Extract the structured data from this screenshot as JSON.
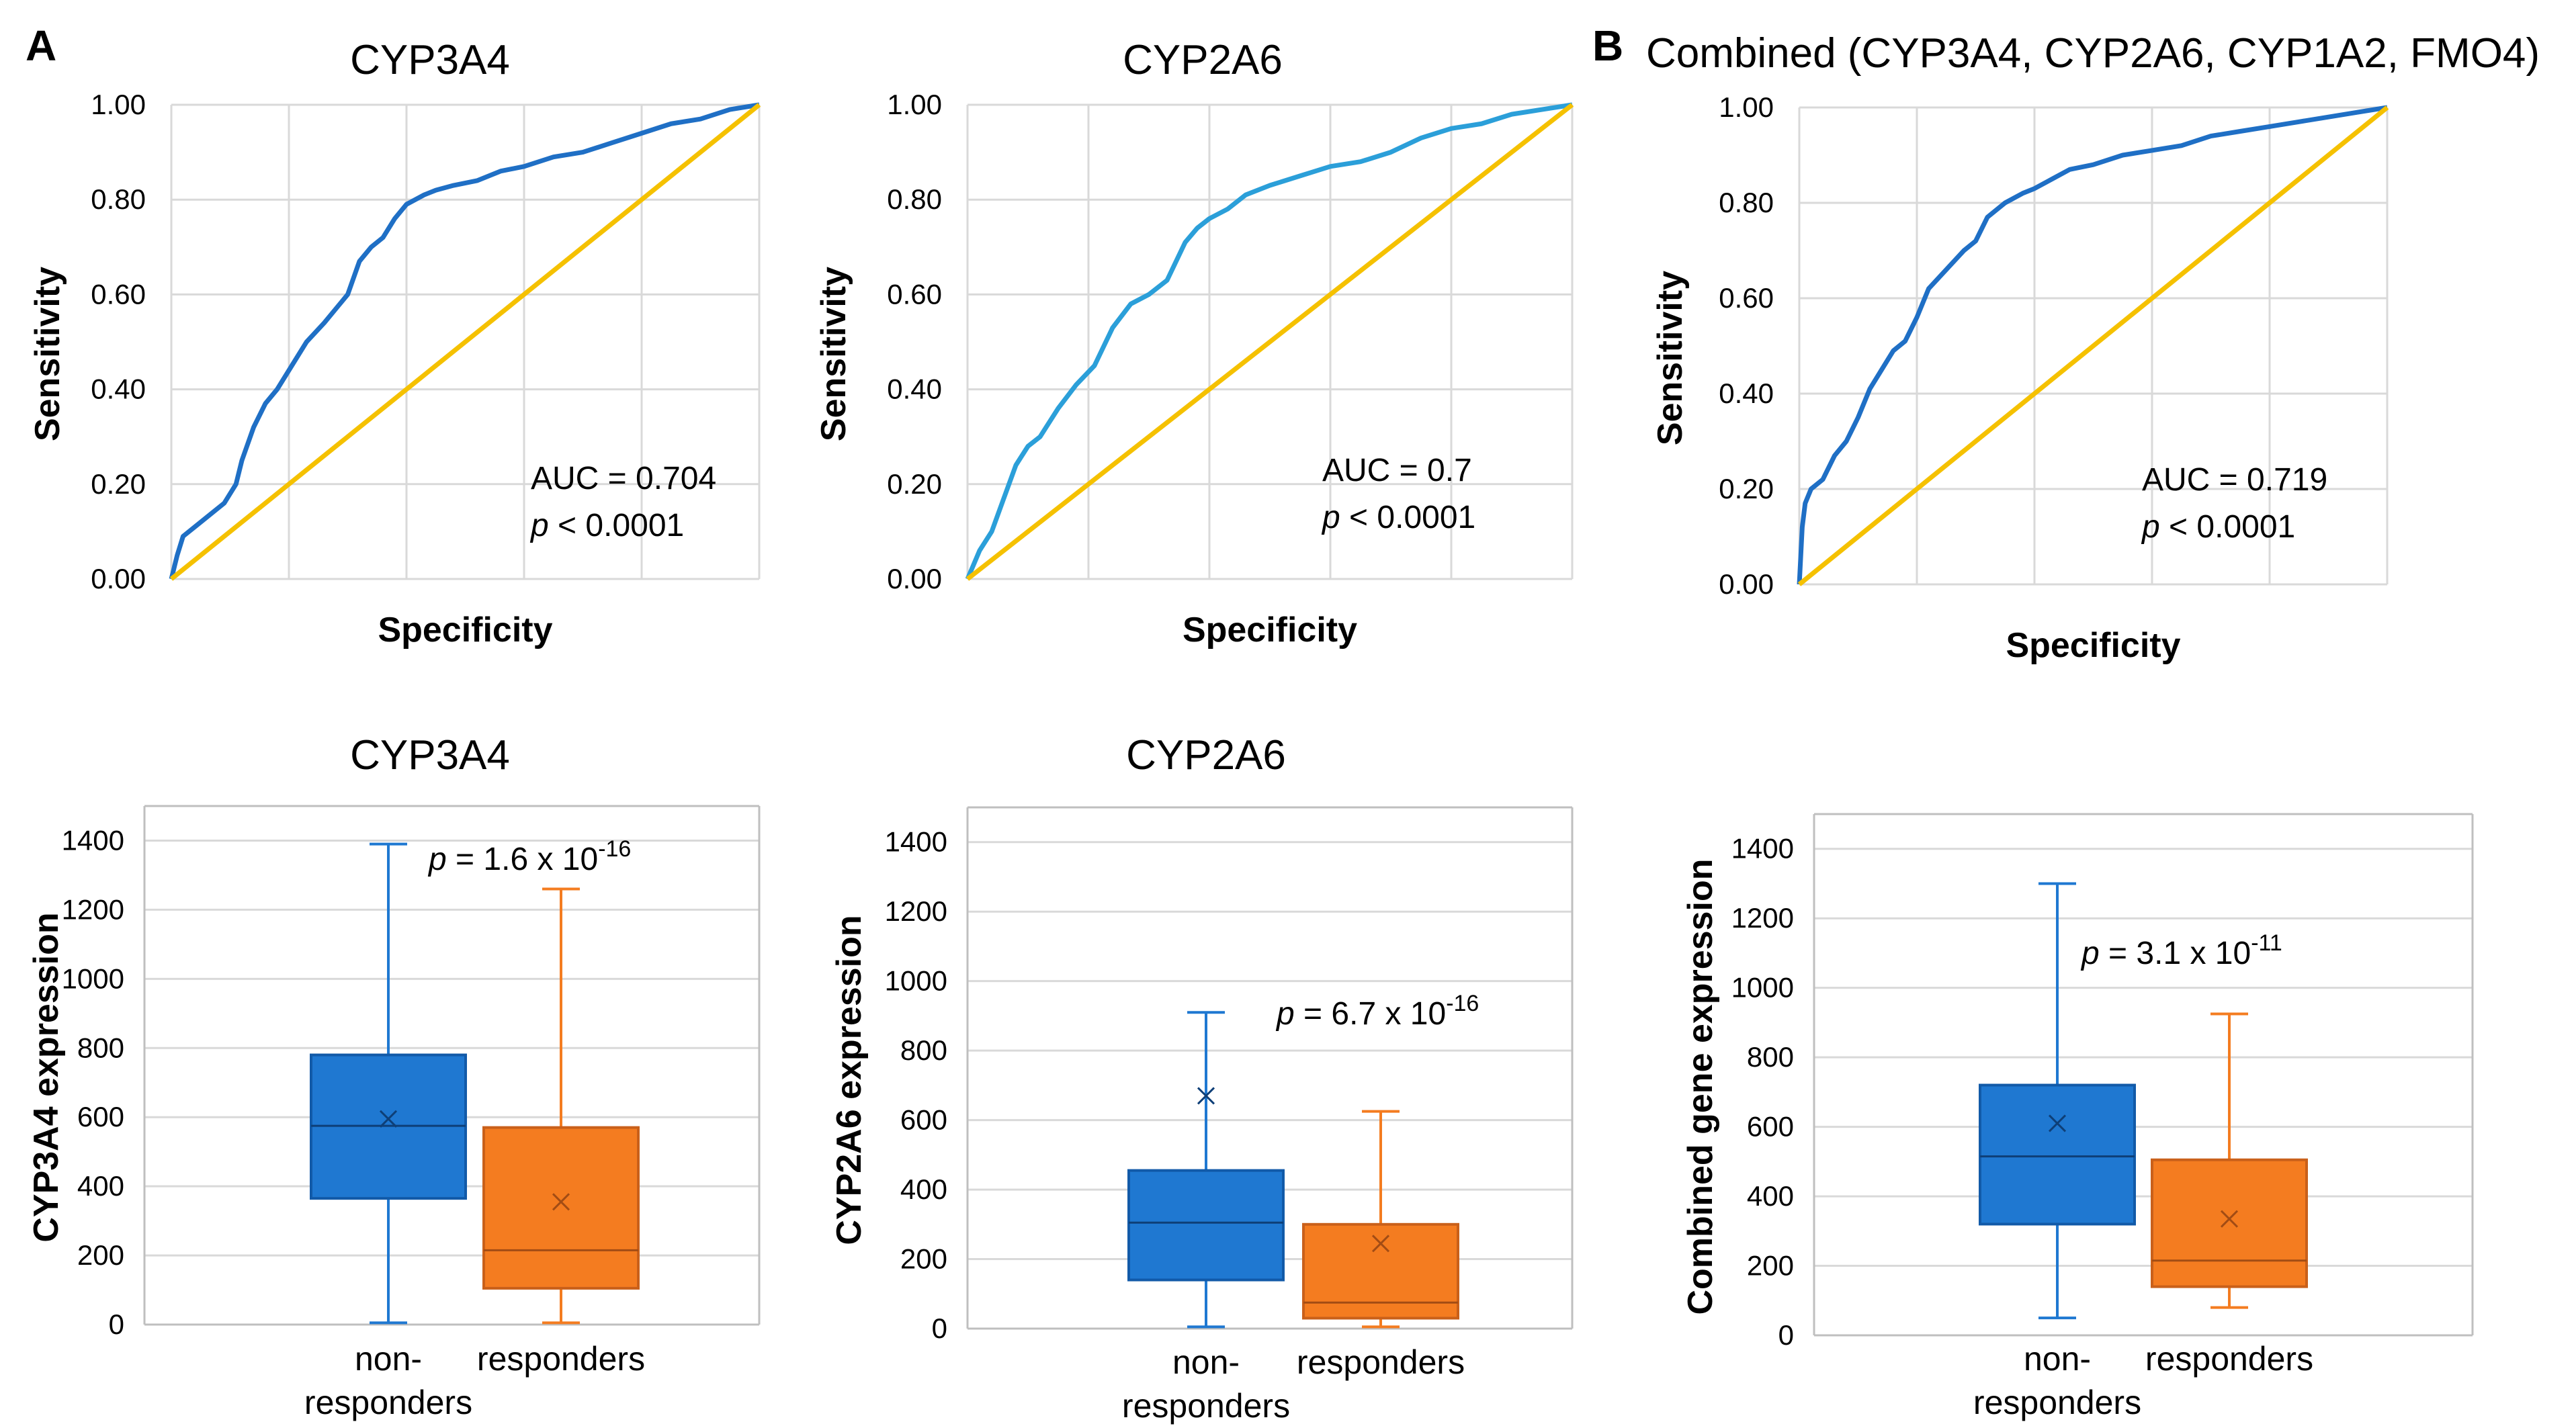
{
  "panel_labels": {
    "a": "A",
    "b": "B"
  },
  "colors": {
    "roc_blue": "#1f6fc5",
    "roc_light": "#2b9fd9",
    "ref_line": "#f5c100",
    "box_blue": "#1f78d1",
    "box_orange": "#f47c20",
    "grid": "#d9d9d9",
    "axis": "#bfbfbf"
  },
  "chart_data": [
    {
      "type": "line",
      "id": "roc_cyp3a4",
      "title": "CYP3A4",
      "xlabel": "Specificity",
      "ylabel": "Sensitivity",
      "ylim": [
        0,
        1
      ],
      "yticks": [
        "0.00",
        "0.20",
        "0.40",
        "0.60",
        "0.80",
        "1.00"
      ],
      "annotation": {
        "auc": "AUC = 0.704",
        "p_italic": "p",
        "p_rest": " < 0.0001"
      },
      "series": [
        {
          "name": "ROC",
          "color": "#1f6fc5",
          "x": [
            0,
            0.01,
            0.02,
            0.04,
            0.06,
            0.09,
            0.11,
            0.12,
            0.14,
            0.16,
            0.18,
            0.2,
            0.23,
            0.26,
            0.28,
            0.3,
            0.32,
            0.34,
            0.36,
            0.37,
            0.38,
            0.4,
            0.43,
            0.45,
            0.48,
            0.52,
            0.56,
            0.6,
            0.65,
            0.7,
            0.75,
            0.8,
            0.85,
            0.9,
            0.95,
            1
          ],
          "y": [
            0,
            0.05,
            0.09,
            0.11,
            0.13,
            0.16,
            0.2,
            0.25,
            0.32,
            0.37,
            0.4,
            0.44,
            0.5,
            0.54,
            0.57,
            0.6,
            0.67,
            0.7,
            0.72,
            0.74,
            0.76,
            0.79,
            0.81,
            0.82,
            0.83,
            0.84,
            0.86,
            0.87,
            0.89,
            0.9,
            0.92,
            0.94,
            0.96,
            0.97,
            0.99,
            1
          ]
        },
        {
          "name": "Reference",
          "color": "#f5c100",
          "x": [
            0,
            1
          ],
          "y": [
            0,
            1
          ]
        }
      ]
    },
    {
      "type": "line",
      "id": "roc_cyp2a6",
      "title": "CYP2A6",
      "xlabel": "Specificity",
      "ylabel": "Sensitivity",
      "ylim": [
        0,
        1
      ],
      "yticks": [
        "0.00",
        "0.20",
        "0.40",
        "0.60",
        "0.80",
        "1.00"
      ],
      "annotation": {
        "auc": "AUC = 0.7",
        "p_italic": "p",
        "p_rest": " < 0.0001"
      },
      "series": [
        {
          "name": "ROC",
          "color": "#2b9fd9",
          "x": [
            0,
            0.01,
            0.02,
            0.04,
            0.06,
            0.08,
            0.1,
            0.12,
            0.15,
            0.18,
            0.21,
            0.24,
            0.27,
            0.3,
            0.33,
            0.36,
            0.38,
            0.4,
            0.43,
            0.46,
            0.5,
            0.55,
            0.6,
            0.65,
            0.7,
            0.75,
            0.8,
            0.85,
            0.9,
            0.95,
            1
          ],
          "y": [
            0,
            0.03,
            0.06,
            0.1,
            0.17,
            0.24,
            0.28,
            0.3,
            0.36,
            0.41,
            0.45,
            0.53,
            0.58,
            0.6,
            0.63,
            0.71,
            0.74,
            0.76,
            0.78,
            0.81,
            0.83,
            0.85,
            0.87,
            0.88,
            0.9,
            0.93,
            0.95,
            0.96,
            0.98,
            0.99,
            1
          ]
        },
        {
          "name": "Reference",
          "color": "#f5c100",
          "x": [
            0,
            1
          ],
          "y": [
            0,
            1
          ]
        }
      ]
    },
    {
      "type": "line",
      "id": "roc_combined",
      "title": "Combined (CYP3A4, CYP2A6, CYP1A2, FMO4)",
      "xlabel": "Specificity",
      "ylabel": "Sensitivity",
      "ylim": [
        0,
        1
      ],
      "yticks": [
        "0.00",
        "0.20",
        "0.40",
        "0.60",
        "0.80",
        "1.00"
      ],
      "annotation": {
        "auc": "AUC = 0.719",
        "p_italic": "p",
        "p_rest": " < 0.0001"
      },
      "series": [
        {
          "name": "ROC",
          "color": "#1f6fc5",
          "x": [
            0,
            0.005,
            0.01,
            0.02,
            0.04,
            0.06,
            0.08,
            0.1,
            0.12,
            0.14,
            0.16,
            0.18,
            0.2,
            0.22,
            0.25,
            0.28,
            0.3,
            0.32,
            0.35,
            0.38,
            0.4,
            0.43,
            0.46,
            0.5,
            0.55,
            0.6,
            0.65,
            0.7,
            0.75,
            0.8,
            0.85,
            0.9,
            0.95,
            1
          ],
          "y": [
            0,
            0.12,
            0.17,
            0.2,
            0.22,
            0.27,
            0.3,
            0.35,
            0.41,
            0.45,
            0.49,
            0.51,
            0.56,
            0.62,
            0.66,
            0.7,
            0.72,
            0.77,
            0.8,
            0.82,
            0.83,
            0.85,
            0.87,
            0.88,
            0.9,
            0.91,
            0.92,
            0.94,
            0.95,
            0.96,
            0.97,
            0.98,
            0.99,
            1
          ]
        },
        {
          "name": "Reference",
          "color": "#f5c100",
          "x": [
            0,
            1
          ],
          "y": [
            0,
            1
          ]
        }
      ]
    },
    {
      "type": "box",
      "id": "box_cyp3a4",
      "title": "CYP3A4",
      "ylabel": "CYP3A4 expression",
      "ylim": [
        0,
        1500
      ],
      "yticks": [
        "0",
        "200",
        "400",
        "600",
        "800",
        "1000",
        "1200",
        "1400"
      ],
      "categories": [
        "non-\nresponders",
        "responders"
      ],
      "annotation": {
        "p_italic": "p",
        "p_rest": " = 1.6 x 10",
        "exp": "-16"
      },
      "series": [
        {
          "name": "non-responders",
          "color": "#1f78d1",
          "min": 5,
          "q1": 365,
          "median": 575,
          "q3": 780,
          "max": 1390,
          "mean": 595
        },
        {
          "name": "responders",
          "color": "#f47c20",
          "min": 5,
          "q1": 105,
          "median": 215,
          "q3": 570,
          "max": 1260,
          "mean": 355
        }
      ]
    },
    {
      "type": "box",
      "id": "box_cyp2a6",
      "title": "CYP2A6",
      "ylabel": "CYP2A6 expression",
      "ylim": [
        0,
        1500
      ],
      "yticks": [
        "0",
        "200",
        "400",
        "600",
        "800",
        "1000",
        "1200",
        "1400"
      ],
      "categories": [
        "non-\nresponders",
        "responders"
      ],
      "annotation": {
        "p_italic": "p",
        "p_rest": " = 6.7 x 10",
        "exp": "-16"
      },
      "series": [
        {
          "name": "non-responders",
          "color": "#1f78d1",
          "min": 5,
          "q1": 140,
          "median": 305,
          "q3": 455,
          "max": 910,
          "mean": 670
        },
        {
          "name": "responders",
          "color": "#f47c20",
          "min": 5,
          "q1": 30,
          "median": 75,
          "q3": 300,
          "max": 625,
          "mean": 245
        }
      ]
    },
    {
      "type": "box",
      "id": "box_combined",
      "title": "",
      "ylabel": "Combined gene expression",
      "ylim": [
        0,
        1500
      ],
      "yticks": [
        "0",
        "200",
        "400",
        "600",
        "800",
        "1000",
        "1200",
        "1400"
      ],
      "categories": [
        "non-\nresponders",
        "responders"
      ],
      "annotation": {
        "p_italic": "p",
        "p_rest": " = 3.1 x 10",
        "exp": "-11"
      },
      "series": [
        {
          "name": "non-responders",
          "color": "#1f78d1",
          "min": 50,
          "q1": 320,
          "median": 515,
          "q3": 720,
          "max": 1300,
          "mean": 610
        },
        {
          "name": "responders",
          "color": "#f47c20",
          "min": 80,
          "q1": 140,
          "median": 215,
          "q3": 505,
          "max": 925,
          "mean": 335
        }
      ]
    }
  ]
}
